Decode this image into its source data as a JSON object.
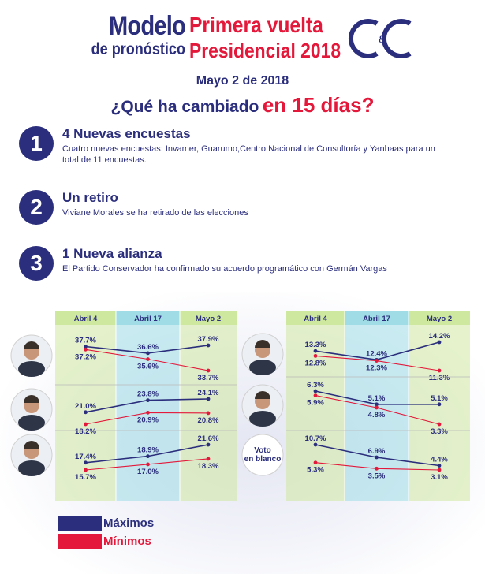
{
  "header": {
    "modelo": "Modelo",
    "pronostico": "de pronóstico",
    "line1": "Primera vuelta",
    "line2": "Presidencial 2018",
    "logo_text": "&"
  },
  "date": "Mayo  2 de 2018",
  "subtitle": {
    "part1": "¿Qué ha cambiado",
    "part2": "en 15 días?"
  },
  "items": [
    {
      "num": "1",
      "title": "4 Nuevas encuestas",
      "desc": "Cuatro nuevas encuestas: Invamer, Guarumo,Centro Nacional de Consultoría y Yanhaas para un total de 11 encuestas."
    },
    {
      "num": "2",
      "title": "Un retiro",
      "desc": "Viviane Morales se ha retirado de las elecciones"
    },
    {
      "num": "3",
      "title": "1 Nueva alianza",
      "desc": "El Partido Conservador ha confirmado su acuerdo programático con Germán Vargas"
    }
  ],
  "legend": {
    "max": "Máximos",
    "min": "Mínimos"
  },
  "colors": {
    "max": "#2b2e7c",
    "min": "#e3183a",
    "green": "#cfe8a0",
    "blue": "#9fdce6",
    "title": "#2b2e7c"
  },
  "chart_data": [
    {
      "type": "line",
      "categories": [
        "Abril 4",
        "Abril 17",
        "Mayo 2"
      ],
      "rows": [
        {
          "photo": "candidate-1",
          "series": [
            {
              "name": "Máximos",
              "values": [
                37.7,
                36.6,
                37.9
              ]
            },
            {
              "name": "Mínimos",
              "values": [
                37.2,
                35.6,
                33.7
              ]
            }
          ]
        },
        {
          "photo": "candidate-2",
          "series": [
            {
              "name": "Máximos",
              "values": [
                21.0,
                23.8,
                24.1
              ]
            },
            {
              "name": "Mínimos",
              "values": [
                18.2,
                20.9,
                20.8
              ]
            }
          ]
        },
        {
          "photo": "candidate-3",
          "series": [
            {
              "name": "Máximos",
              "values": [
                17.4,
                18.9,
                21.6
              ]
            },
            {
              "name": "Mínimos",
              "values": [
                15.7,
                17.0,
                18.3
              ]
            }
          ]
        }
      ],
      "labels": [
        [
          [
            "37.7%",
            "36.6%",
            "37.9%"
          ],
          [
            "37.2%",
            "35.6%",
            "33.7%"
          ]
        ],
        [
          [
            "21.0%",
            "23.8%",
            "24.1%"
          ],
          [
            "18.2%",
            "20.9%",
            "20.8%"
          ]
        ],
        [
          [
            "17.4%",
            "18.9%",
            "21.6%"
          ],
          [
            "15.7%",
            "17.0%",
            "18.3%"
          ]
        ]
      ]
    },
    {
      "type": "line",
      "categories": [
        "Abril 4",
        "Abril 17",
        "Mayo 2"
      ],
      "rows": [
        {
          "photo": "candidate-4",
          "series": [
            {
              "name": "Máximos",
              "values": [
                13.3,
                12.4,
                14.2
              ]
            },
            {
              "name": "Mínimos",
              "values": [
                12.8,
                12.3,
                11.3
              ]
            }
          ]
        },
        {
          "photo": "candidate-5",
          "series": [
            {
              "name": "Máximos",
              "values": [
                6.3,
                5.1,
                5.1
              ]
            },
            {
              "name": "Mínimos",
              "values": [
                5.9,
                4.8,
                3.3
              ]
            }
          ]
        },
        {
          "photo": "voto-en-blanco",
          "photo_label": [
            "Voto",
            "en blanco"
          ],
          "series": [
            {
              "name": "Máximos",
              "values": [
                10.7,
                6.9,
                4.4
              ]
            },
            {
              "name": "Mínimos",
              "values": [
                5.3,
                3.5,
                3.1
              ]
            }
          ]
        }
      ],
      "labels": [
        [
          [
            "13.3%",
            "12.4%",
            "14.2%"
          ],
          [
            "12.8%",
            "12.3%",
            "11.3%"
          ]
        ],
        [
          [
            "6.3%",
            "5.1%",
            "5.1%"
          ],
          [
            "5.9%",
            "4.8%",
            "3.3%"
          ]
        ],
        [
          [
            "10.7%",
            "6.9%",
            "4.4%"
          ],
          [
            "5.3%",
            "3.5%",
            "3.1%"
          ]
        ]
      ]
    }
  ]
}
